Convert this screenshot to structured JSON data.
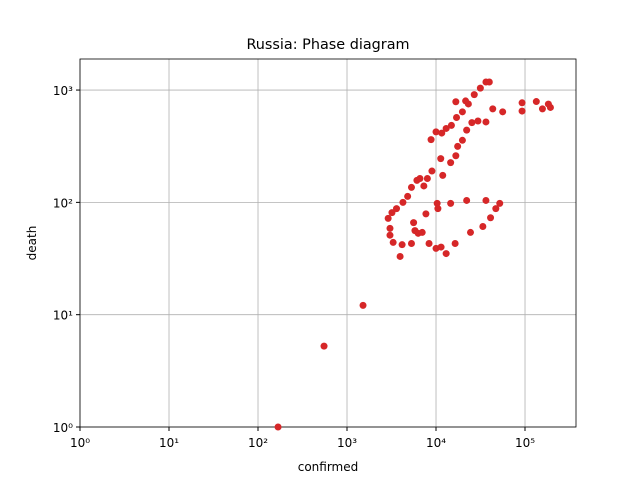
{
  "chart_data": {
    "type": "scatter",
    "title": "Russia: Phase diagram",
    "x_label": "confirmed",
    "y_label": "death",
    "log_x": true,
    "log_y": true,
    "grid": true,
    "color": "#d62728",
    "xlim": [
      1,
      374000
    ],
    "ylim": [
      1,
      1890
    ],
    "xticks": [
      {
        "value": 1,
        "label": "10⁰"
      },
      {
        "value": 10,
        "label": "10¹"
      },
      {
        "value": 100,
        "label": "10²"
      },
      {
        "value": 1000,
        "label": "10³"
      },
      {
        "value": 10000,
        "label": "10⁴"
      },
      {
        "value": 100000,
        "label": "10⁵"
      }
    ],
    "yticks": [
      {
        "value": 1,
        "label": "10⁰"
      },
      {
        "value": 10,
        "label": "10¹"
      },
      {
        "value": 100,
        "label": "10²"
      },
      {
        "value": 1000,
        "label": "10³"
      }
    ],
    "x": [
      168,
      552,
      1514,
      3040,
      3040,
      3300,
      4160,
      3950,
      5300,
      5800,
      6300,
      7000,
      8350,
      10000,
      11400,
      13000,
      16400,
      10300,
      10500,
      14600,
      22100,
      36400,
      24400,
      33600,
      41000,
      47000,
      52000,
      2900,
      3200,
      3600,
      4250,
      4800,
      5300,
      6100,
      6600,
      7300,
      8000,
      9000,
      7700,
      5600,
      8800,
      10000,
      11600,
      13000,
      14900,
      17000,
      19800,
      23100,
      26900,
      31500,
      36400,
      39700,
      11300,
      11900,
      14600,
      16700,
      17500,
      19800,
      22100,
      25300,
      29600,
      36400,
      16700,
      21500,
      43400,
      56100,
      92700,
      92700,
      134000,
      157000,
      183000,
      193000
    ],
    "values": [
      1,
      5.25,
      12.1,
      58.7,
      51,
      44,
      42,
      33,
      43,
      56,
      53,
      54,
      43,
      38.9,
      40,
      35,
      43,
      98,
      88,
      98,
      104,
      104,
      54,
      61,
      73,
      88,
      98,
      72,
      81,
      88,
      100,
      113,
      136,
      157,
      163,
      140,
      163,
      190,
      79,
      66,
      362,
      424,
      414,
      455,
      485,
      570,
      640,
      752,
      910,
      1040,
      1180,
      1180,
      245,
      174,
      226,
      260,
      315,
      357,
      440,
      513,
      530,
      520,
      787,
      800,
      680,
      640,
      770,
      650,
      790,
      680,
      750,
      700
    ]
  }
}
